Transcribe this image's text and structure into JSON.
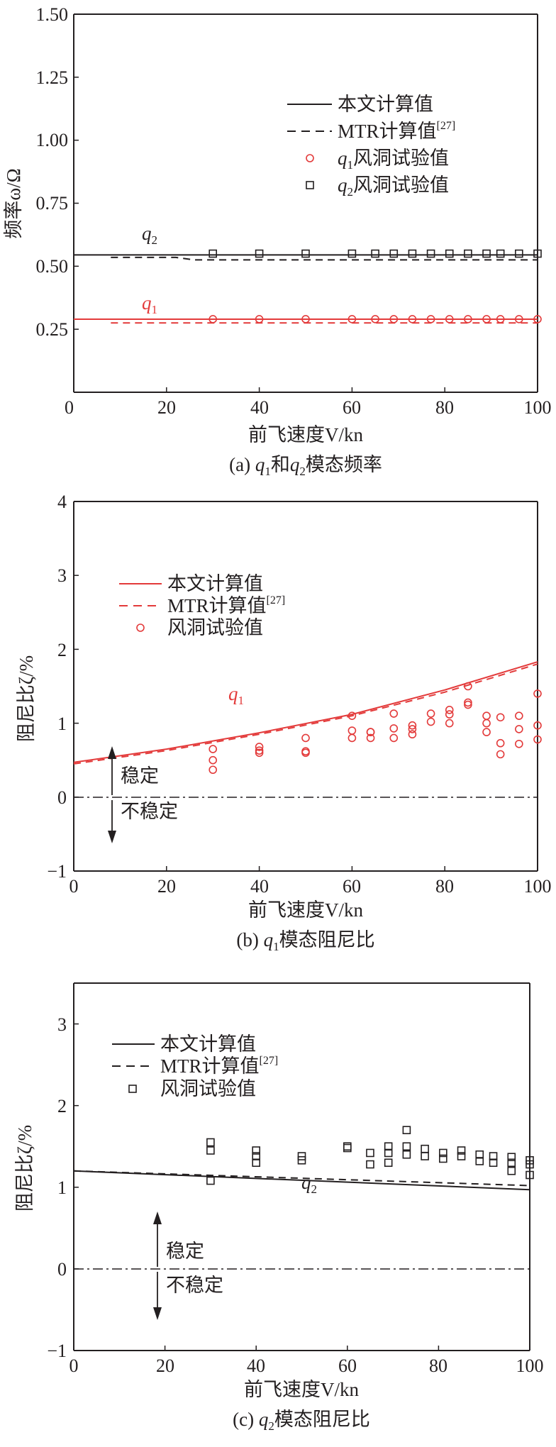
{
  "chart_data": [
    {
      "id": "a",
      "type": "line",
      "caption": {
        "pre": "(a) ",
        "q1": "q",
        "q1sub": "1",
        "mid": "和",
        "q2": "q",
        "q2sub": "2",
        "post": "模态频率"
      },
      "xlabel": "前飞速度V/kn",
      "ylabel": "频率ω/Ω",
      "xlim": [
        0,
        100
      ],
      "ylim": [
        0,
        1.5
      ],
      "xticks": [
        "0",
        "20",
        "40",
        "60",
        "80",
        "100"
      ],
      "yticks": [
        "0.25",
        "0.50",
        "0.75",
        "1.00",
        "1.25",
        "1.50"
      ],
      "legend": {
        "calc": "本文计算值",
        "mtr": "MTR计算值",
        "mtr_ref": "[27]",
        "q1_sym": "q",
        "q1_sub": "1",
        "q1_exp": "风洞试验值",
        "q2_sym": "q",
        "q2_sub": "2",
        "q2_exp": "风洞试验值"
      },
      "labels": {
        "q2": "q",
        "q2sub": "2",
        "q1": "q",
        "q1sub": "1"
      },
      "series": [
        {
          "name": "q2 本文计算值",
          "color": "#231f20",
          "dash": false,
          "x": [
            0,
            100
          ],
          "y": [
            0.545,
            0.545
          ]
        },
        {
          "name": "q2 MTR计算值",
          "color": "#231f20",
          "dash": true,
          "x": [
            8,
            22,
            26,
            100
          ],
          "y": [
            0.535,
            0.535,
            0.525,
            0.525
          ]
        },
        {
          "name": "q1 本文计算值",
          "color": "#e33a3a",
          "dash": false,
          "x": [
            0,
            100
          ],
          "y": [
            0.29,
            0.29
          ]
        },
        {
          "name": "q1 MTR计算值",
          "color": "#e33a3a",
          "dash": true,
          "x": [
            8,
            100
          ],
          "y": [
            0.275,
            0.275
          ]
        }
      ],
      "points": [
        {
          "name": "q1 风洞试验值",
          "marker": "circle",
          "color": "#e33a3a",
          "x": [
            30,
            40,
            50,
            60,
            65,
            69,
            73,
            77,
            81,
            85,
            89,
            92,
            96,
            100
          ],
          "y": [
            0.29,
            0.29,
            0.29,
            0.29,
            0.29,
            0.29,
            0.29,
            0.29,
            0.29,
            0.29,
            0.29,
            0.29,
            0.29,
            0.29
          ]
        },
        {
          "name": "q2 风洞试验值",
          "marker": "square",
          "color": "#231f20",
          "x": [
            30,
            40,
            50,
            60,
            65,
            69,
            73,
            77,
            81,
            85,
            89,
            92,
            96,
            100
          ],
          "y": [
            0.55,
            0.55,
            0.55,
            0.55,
            0.55,
            0.55,
            0.55,
            0.55,
            0.55,
            0.55,
            0.55,
            0.55,
            0.55,
            0.55
          ]
        }
      ]
    },
    {
      "id": "b",
      "type": "line",
      "caption": {
        "pre": "(b) ",
        "q": "q",
        "qsub": "1",
        "post": "模态阻尼比"
      },
      "xlabel": "前飞速度V/kn",
      "ylabel": "阻尼比ζ/%",
      "xlim": [
        0,
        100
      ],
      "ylim": [
        -1,
        4
      ],
      "xticks": [
        "0",
        "20",
        "40",
        "60",
        "80",
        "100"
      ],
      "yticks": [
        "−1",
        "0",
        "1",
        "2",
        "3",
        "4"
      ],
      "legend": {
        "calc": "本文计算值",
        "mtr": "MTR计算值",
        "mtr_ref": "[27]",
        "exp": "风洞试验值"
      },
      "labels": {
        "q": "q",
        "qsub": "1",
        "stable": "稳定",
        "unstable": "不稳定"
      },
      "series": [
        {
          "name": "本文计算值",
          "color": "#e33a3a",
          "dash": false,
          "x": [
            0,
            20,
            40,
            60,
            80,
            100
          ],
          "y": [
            0.47,
            0.65,
            0.87,
            1.12,
            1.45,
            1.83
          ]
        },
        {
          "name": "MTR计算值",
          "color": "#e33a3a",
          "dash": true,
          "x": [
            0,
            20,
            40,
            60,
            80,
            100
          ],
          "y": [
            0.45,
            0.63,
            0.85,
            1.1,
            1.42,
            1.8
          ]
        }
      ],
      "points": [
        {
          "name": "风洞试验值",
          "marker": "circle",
          "color": "#e33a3a",
          "x": [
            30,
            30,
            30,
            40,
            40,
            40,
            50,
            50,
            50,
            60,
            60,
            60,
            64,
            64,
            64,
            69,
            69,
            69,
            73,
            73,
            73,
            77,
            77,
            81,
            81,
            81,
            85,
            85,
            85,
            89,
            89,
            89,
            92,
            92,
            92,
            96,
            96,
            96,
            100,
            100,
            100
          ],
          "y": [
            0.65,
            0.5,
            0.37,
            0.68,
            0.63,
            0.6,
            0.8,
            0.62,
            0.6,
            1.1,
            0.9,
            0.8,
            0.88,
            0.88,
            0.8,
            1.13,
            0.93,
            0.8,
            0.97,
            0.92,
            0.85,
            1.13,
            1.02,
            1.18,
            1.12,
            1.0,
            1.5,
            1.28,
            1.25,
            1.1,
            1.0,
            0.88,
            1.08,
            0.73,
            0.58,
            1.1,
            0.92,
            0.72,
            1.4,
            0.97,
            0.78
          ]
        }
      ]
    },
    {
      "id": "c",
      "type": "line",
      "caption": {
        "pre": "(c) ",
        "q": "q",
        "qsub": "2",
        "post": "模态阻尼比"
      },
      "xlabel": "前飞速度V/kn",
      "ylabel": "阻尼比ζ/%",
      "xlim": [
        0,
        100
      ],
      "ylim": [
        -1,
        3.5
      ],
      "xticks": [
        "0",
        "20",
        "40",
        "60",
        "80",
        "100"
      ],
      "yticks": [
        "−1",
        "0",
        "1",
        "2",
        "3"
      ],
      "legend": {
        "calc": "本文计算值",
        "mtr": "MTR计算值",
        "mtr_ref": "[27]",
        "exp": "风洞试验值"
      },
      "labels": {
        "q": "q",
        "qsub": "2",
        "stable": "稳定",
        "unstable": "不稳定"
      },
      "series": [
        {
          "name": "本文计算值",
          "color": "#231f20",
          "dash": false,
          "x": [
            0,
            100
          ],
          "y": [
            1.2,
            0.97
          ]
        },
        {
          "name": "MTR计算值",
          "color": "#231f20",
          "dash": true,
          "x": [
            0,
            100
          ],
          "y": [
            1.2,
            1.02
          ]
        }
      ],
      "points": [
        {
          "name": "风洞试验值",
          "marker": "square",
          "color": "#231f20",
          "x": [
            30,
            30,
            30,
            40,
            40,
            40,
            50,
            50,
            60,
            60,
            65,
            65,
            69,
            69,
            69,
            73,
            73,
            73,
            77,
            77,
            81,
            81,
            85,
            85,
            89,
            89,
            92,
            92,
            96,
            96,
            96,
            100,
            100,
            100
          ],
          "y": [
            1.55,
            1.45,
            1.08,
            1.45,
            1.38,
            1.3,
            1.38,
            1.33,
            1.5,
            1.48,
            1.42,
            1.28,
            1.5,
            1.42,
            1.3,
            1.7,
            1.5,
            1.4,
            1.47,
            1.38,
            1.42,
            1.35,
            1.45,
            1.38,
            1.4,
            1.32,
            1.38,
            1.3,
            1.37,
            1.3,
            1.2,
            1.33,
            1.28,
            1.15
          ]
        }
      ]
    }
  ]
}
